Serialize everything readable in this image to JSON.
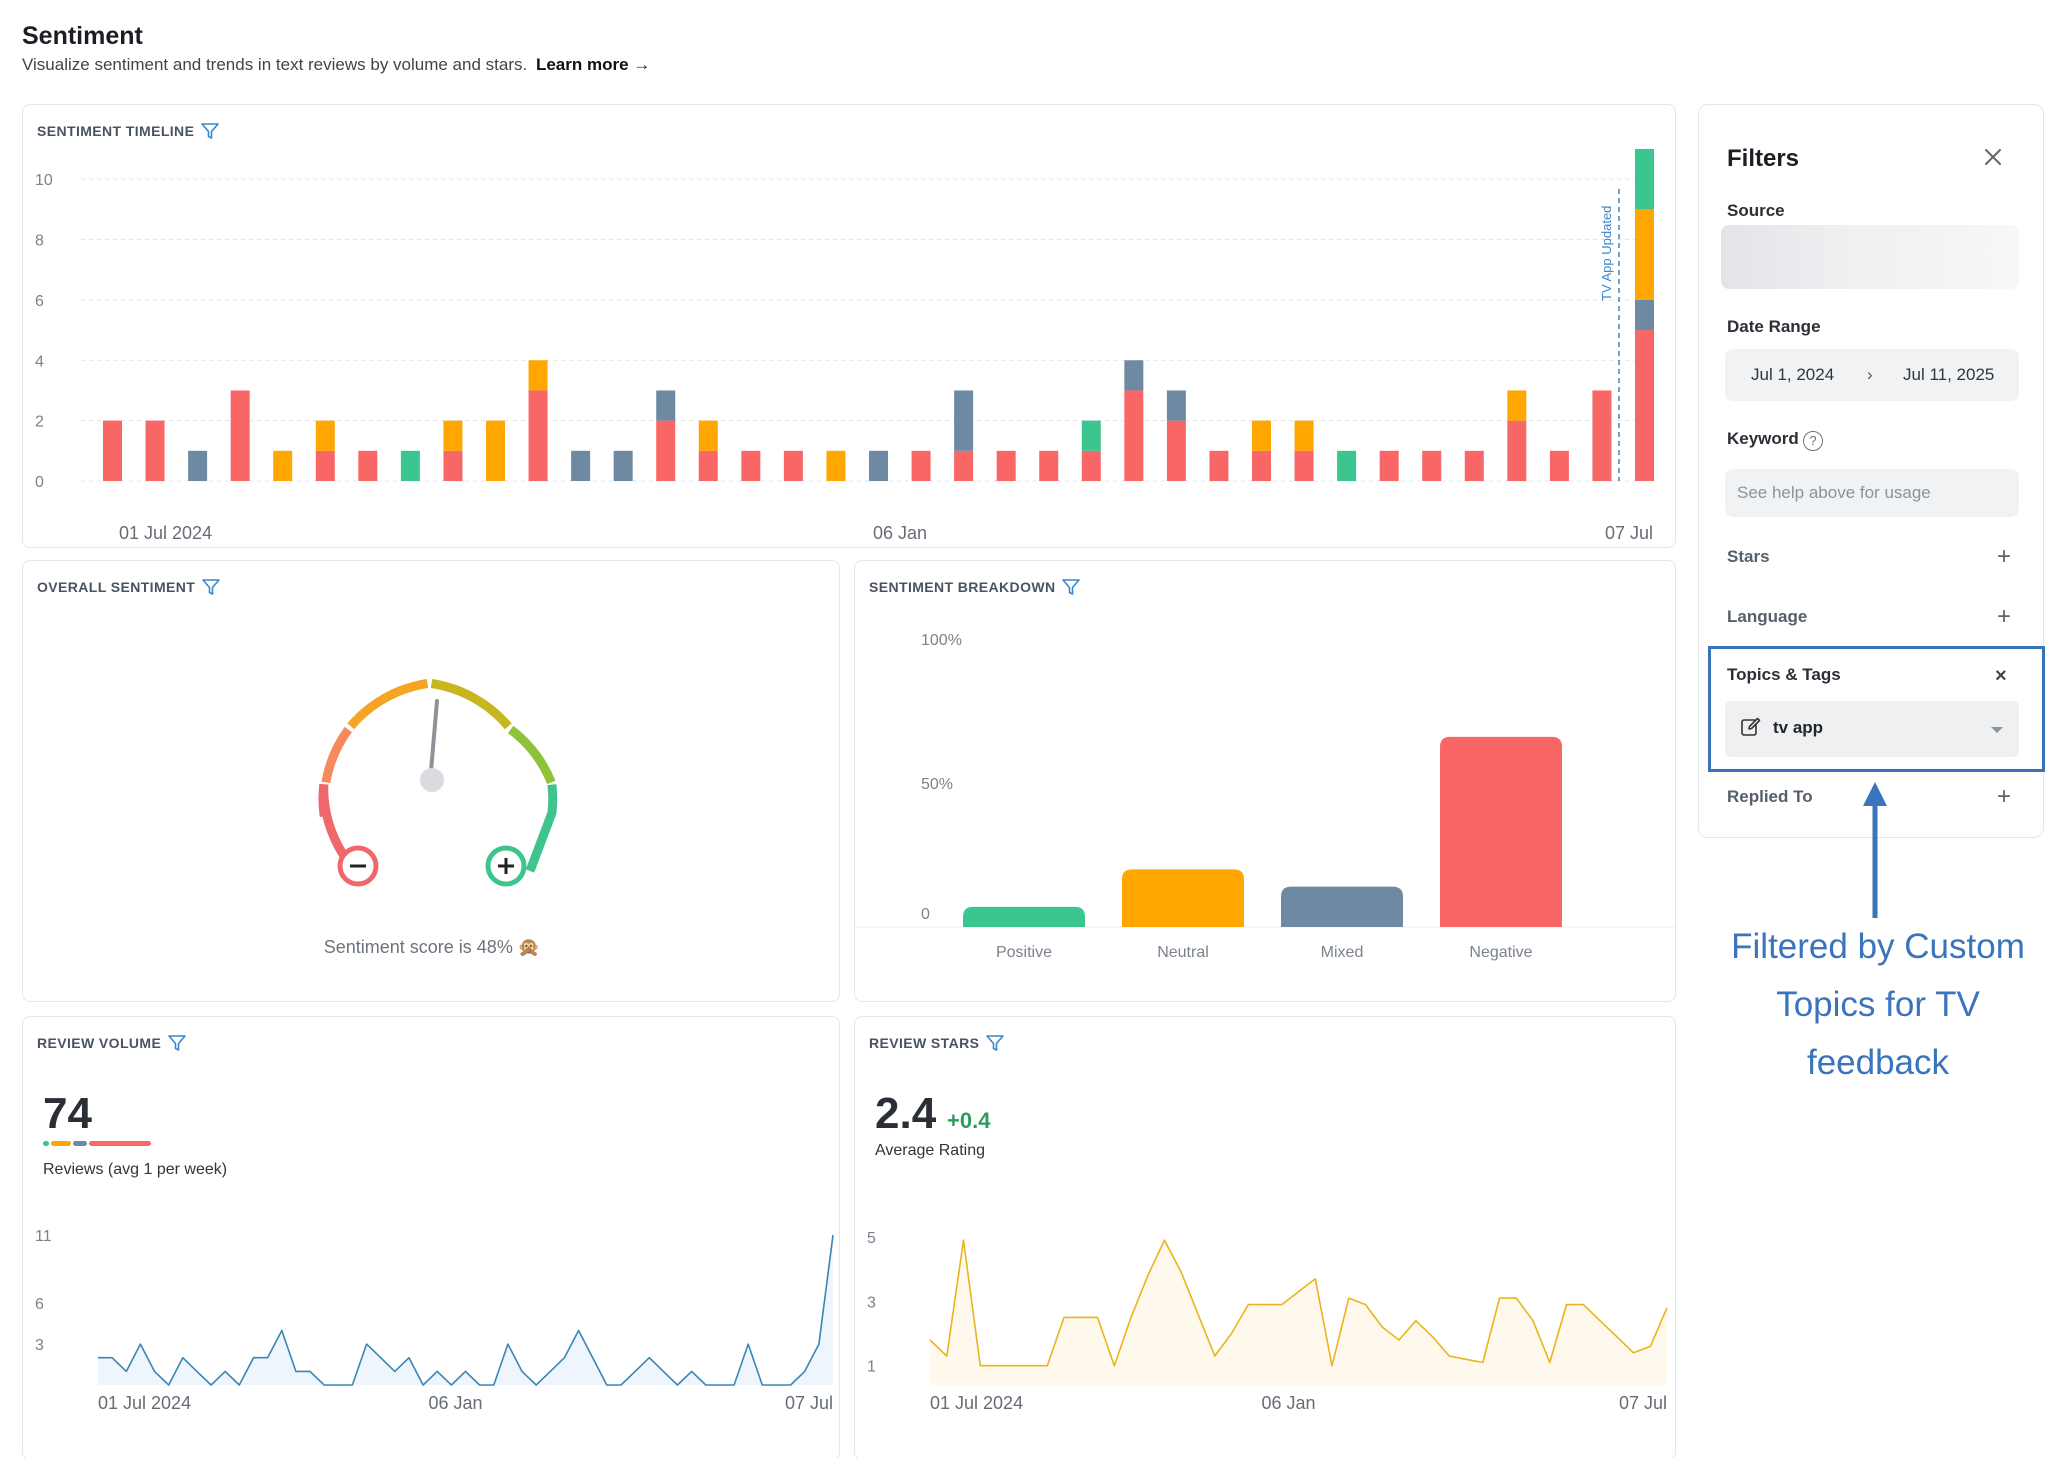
{
  "header": {
    "title": "Sentiment",
    "subtitle": "Visualize sentiment and trends in text reviews by volume and stars.",
    "learn_more": "Learn more →"
  },
  "colors": {
    "negative": "#f96666",
    "neutral": "#ffa600",
    "mixed": "#6e8aa2",
    "positive": "#3cc68f",
    "line_blue": "#3a86b5",
    "line_gold": "#e9b41d",
    "annotation": "#3a74bd"
  },
  "timeline": {
    "title": "SENTIMENT TIMELINE",
    "annotation": "TV App Updated",
    "chart_data": {
      "type": "bar",
      "stacked": true,
      "ylim": [
        0,
        11
      ],
      "yticks": [
        0,
        2,
        4,
        6,
        8,
        10
      ],
      "xlabels": [
        "01 Jul 2024",
        "06 Jan",
        "07 Jul"
      ],
      "series_order": [
        "negative",
        "mixed",
        "neutral",
        "positive"
      ],
      "bars": [
        {
          "negative": 2
        },
        {
          "negative": 2
        },
        {
          "mixed": 1
        },
        {
          "negative": 3
        },
        {
          "neutral": 1
        },
        {
          "negative": 1,
          "neutral": 1
        },
        {
          "negative": 1
        },
        {
          "positive": 1
        },
        {
          "negative": 1,
          "neutral": 1
        },
        {
          "neutral": 2
        },
        {
          "negative": 3,
          "neutral": 1
        },
        {
          "mixed": 1
        },
        {
          "mixed": 1
        },
        {
          "negative": 2,
          "mixed": 1
        },
        {
          "negative": 1,
          "neutral": 1
        },
        {
          "negative": 1
        },
        {
          "negative": 1
        },
        {
          "neutral": 1
        },
        {
          "mixed": 1
        },
        {
          "negative": 1
        },
        {
          "negative": 1,
          "mixed": 2
        },
        {
          "negative": 1
        },
        {
          "negative": 1
        },
        {
          "negative": 1,
          "positive": 1
        },
        {
          "negative": 3,
          "mixed": 1
        },
        {
          "negative": 2,
          "mixed": 1
        },
        {
          "negative": 1
        },
        {
          "negative": 1,
          "neutral": 1
        },
        {
          "negative": 1,
          "neutral": 1
        },
        {
          "positive": 1
        },
        {
          "negative": 1
        },
        {
          "negative": 1
        },
        {
          "negative": 1
        },
        {
          "negative": 2,
          "neutral": 1
        },
        {
          "negative": 1
        },
        {
          "negative": 3
        },
        {
          "negative": 5,
          "mixed": 1,
          "neutral": 3,
          "positive": 2
        }
      ]
    }
  },
  "overall": {
    "title": "OVERALL SENTIMENT",
    "score_text": "Sentiment score is 48% 🙊",
    "score": 48
  },
  "breakdown": {
    "title": "SENTIMENT BREAKDOWN",
    "chart_data": {
      "type": "bar",
      "categories": [
        "Positive",
        "Neutral",
        "Mixed",
        "Negative"
      ],
      "values": [
        7,
        20,
        14,
        66
      ],
      "ylim": [
        0,
        100
      ],
      "yticks": [
        "0",
        "50%",
        "100%"
      ]
    }
  },
  "volume": {
    "title": "REVIEW VOLUME",
    "value": "74",
    "label": "Reviews (avg 1 per week)",
    "chart_data": {
      "type": "area",
      "ylim": [
        0,
        11
      ],
      "yticks": [
        3,
        6,
        11
      ],
      "xlabels": [
        "01 Jul 2024",
        "06 Jan",
        "07 Jul"
      ],
      "values": [
        2,
        2,
        1,
        3,
        1,
        0,
        2,
        1,
        0,
        1,
        0,
        2,
        2,
        4,
        1,
        1,
        0,
        0,
        0,
        3,
        2,
        1,
        2,
        0,
        1,
        0,
        1,
        0,
        0,
        3,
        1,
        0,
        1,
        2,
        4,
        2,
        0,
        0,
        1,
        2,
        1,
        0,
        1,
        0,
        0,
        0,
        3,
        0,
        0,
        0,
        1,
        3,
        11
      ]
    }
  },
  "stars": {
    "title": "REVIEW STARS",
    "value": "2.4",
    "delta": "+0.4",
    "label": "Average Rating",
    "chart_data": {
      "type": "area",
      "ylim": [
        0.4,
        5
      ],
      "yticks": [
        1,
        3,
        5
      ],
      "xlabels": [
        "01 Jul 2024",
        "06 Jan",
        "07 Jul"
      ],
      "values": [
        1.8,
        1.3,
        4.9,
        1,
        1,
        1,
        1,
        1,
        2.5,
        2.5,
        2.5,
        1,
        2.5,
        3.8,
        4.9,
        3.9,
        2.6,
        1.3,
        2,
        2.9,
        2.9,
        2.9,
        3.3,
        3.7,
        1,
        3.1,
        2.9,
        2.2,
        1.8,
        2.4,
        1.9,
        1.3,
        1.2,
        1.1,
        3.1,
        3.1,
        2.4,
        1.1,
        2.9,
        2.9,
        2.4,
        1.9,
        1.4,
        1.6,
        2.8
      ]
    }
  },
  "filters": {
    "title": "Filters",
    "source_label": "Source",
    "date_label": "Date Range",
    "date_from": "Jul 1, 2024",
    "date_arrow": "›",
    "date_to": "Jul 11, 2025",
    "keyword_label": "Keyword",
    "keyword_help": "?",
    "keyword_placeholder": "See help above for usage",
    "stars_label": "Stars",
    "language_label": "Language",
    "topics_label": "Topics & Tags",
    "topics_value": "tv app",
    "replied_label": "Replied To",
    "plus": "+",
    "remove": "×"
  },
  "annotation_text": [
    "Filtered by Custom",
    "Topics for TV",
    "feedback"
  ]
}
